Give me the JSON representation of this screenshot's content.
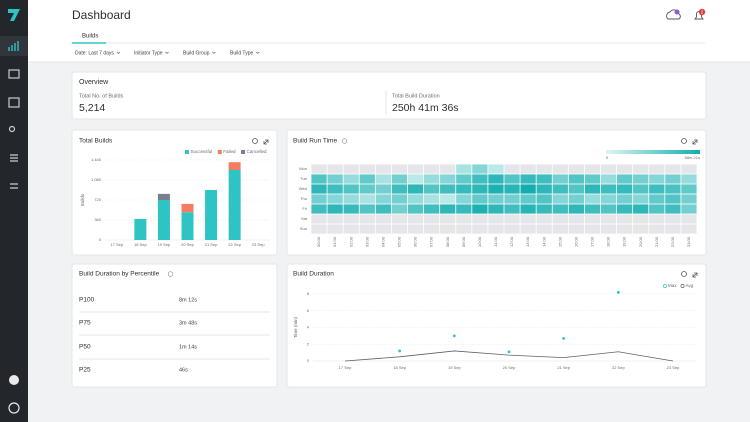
{
  "header": {
    "title": "Dashboard",
    "tab": "Builds",
    "filters": [
      "Date: Last 7 days",
      "Initiator Type",
      "Build Group",
      "Build Type"
    ],
    "notification_count": 2
  },
  "overview": {
    "title": "Overview",
    "metrics": [
      {
        "label": "Total No. of Builds",
        "value": "5,214"
      },
      {
        "label": "Total Build Duration",
        "value": "250h 41m 36s"
      }
    ]
  },
  "percentiles": {
    "title": "Build Duration by Percentile",
    "rows": [
      [
        "P100",
        "8m 12s"
      ],
      [
        "P75",
        "3m 48s"
      ],
      [
        "P50",
        "1m 14s"
      ],
      [
        "P25",
        "46s"
      ]
    ]
  },
  "chart_data": [
    {
      "type": "bar",
      "stacked": true,
      "title": "Total Builds",
      "y_label": "Builds",
      "categories": [
        "17 Sep",
        "18 Sep",
        "19 Sep",
        "20 Sep",
        "21 Sep",
        "22 Sep",
        "23 Sep"
      ],
      "series": [
        {
          "name": "Successful",
          "color": "#2ec4c4",
          "values": [
            0,
            378,
            720,
            500,
            900,
            1260,
            0
          ]
        },
        {
          "name": "Failed",
          "color": "#f37d62",
          "values": [
            0,
            0,
            0,
            150,
            0,
            140,
            0
          ]
        },
        {
          "name": "Cancelled",
          "color": "#7c7e8c",
          "values": [
            0,
            0,
            110,
            0,
            0,
            0,
            0
          ]
        }
      ],
      "ylim": [
        0,
        1440
      ],
      "yticks": [
        0,
        360,
        720,
        {
          "value": 1080,
          "label": "1,080"
        },
        {
          "value": 1440,
          "label": "1,440"
        }
      ],
      "grid": true,
      "legend": "top-right"
    },
    {
      "type": "heatmap",
      "title": "Build Run Time",
      "x": [
        "00:00",
        "01:00",
        "02:00",
        "03:00",
        "04:00",
        "05:00",
        "06:00",
        "07:00",
        "08:00",
        "09:00",
        "10:00",
        "11:00",
        "12:00",
        "13:00",
        "14:00",
        "15:00",
        "16:00",
        "17:00",
        "18:00",
        "19:00",
        "20:00",
        "21:00",
        "22:00",
        "23:00"
      ],
      "y": [
        "Mon",
        "Tue",
        "Wed",
        "Thu",
        "Fri",
        "Sat",
        "Sun"
      ],
      "values": [
        [
          null,
          null,
          null,
          null,
          null,
          null,
          null,
          null,
          null,
          15,
          25,
          10,
          null,
          null,
          null,
          null,
          null,
          null,
          null,
          null,
          null,
          null,
          null,
          null
        ],
        [
          40,
          30,
          20,
          35,
          15,
          30,
          10,
          20,
          25,
          35,
          45,
          50,
          40,
          48,
          45,
          30,
          40,
          35,
          20,
          35,
          30,
          25,
          30,
          20
        ],
        [
          50,
          45,
          40,
          35,
          30,
          45,
          50,
          40,
          45,
          48,
          50,
          55,
          52,
          58,
          50,
          45,
          40,
          50,
          45,
          48,
          40,
          45,
          42,
          35
        ],
        [
          30,
          25,
          20,
          15,
          25,
          30,
          20,
          15,
          10,
          25,
          35,
          30,
          30,
          35,
          40,
          25,
          30,
          20,
          25,
          30,
          25,
          35,
          40,
          30
        ],
        [
          45,
          50,
          48,
          40,
          45,
          30,
          40,
          45,
          50,
          48,
          55,
          50,
          45,
          52,
          48,
          45,
          50,
          45,
          40,
          48,
          50,
          40,
          45,
          30
        ],
        [
          null,
          null,
          null,
          null,
          null,
          null,
          null,
          null,
          null,
          null,
          null,
          null,
          null,
          null,
          null,
          null,
          null,
          null,
          null,
          null,
          null,
          null,
          null,
          null
        ],
        [
          null,
          null,
          null,
          null,
          null,
          null,
          null,
          null,
          null,
          null,
          null,
          null,
          null,
          null,
          null,
          null,
          null,
          null,
          null,
          null,
          null,
          null,
          null,
          null
        ]
      ],
      "zlim": [
        0,
        58.35
      ],
      "zticks": [
        0,
        {
          "value": 58.35,
          "label": "58m 21s"
        }
      ],
      "color_low": "#dcf5f5",
      "color_high": "#12adae",
      "empty_color": "#e4e6e9"
    },
    {
      "type": "line",
      "title": "Build Duration",
      "y_label": "Time (min)",
      "categories": [
        "17 Sep",
        "18 Sep",
        "19 Sep",
        "20 Sep",
        "21 Sep",
        "22 Sep",
        "23 Sep"
      ],
      "series": [
        {
          "name": "Max",
          "color": "#2ec4c4",
          "style": "points",
          "values": [
            null,
            1.2,
            3.0,
            1.1,
            2.7,
            8.2,
            null
          ]
        },
        {
          "name": "Avg",
          "color": "#5a6068",
          "style": "line",
          "values": [
            0,
            0.5,
            1.2,
            0.7,
            0.4,
            1.1,
            0
          ]
        }
      ],
      "ylim": [
        0,
        8
      ],
      "yticks": [
        0,
        2,
        4,
        6,
        8
      ],
      "grid": true,
      "legend": "top-right"
    }
  ]
}
